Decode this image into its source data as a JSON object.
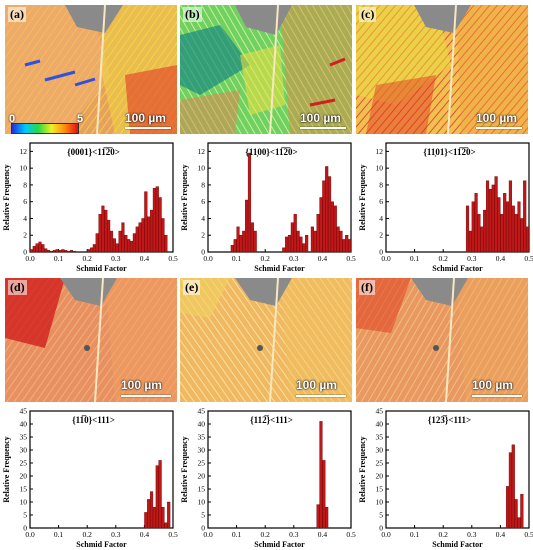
{
  "maps": [
    {
      "label": "(a)",
      "scale": "100 µm",
      "colorbar_min": "0",
      "colorbar_max": "5"
    },
    {
      "label": "(b)",
      "scale": "100 µm"
    },
    {
      "label": "(c)",
      "scale": "100 µm"
    },
    {
      "label": "(d)",
      "scale": "100 µm"
    },
    {
      "label": "(e)",
      "scale": "100 µm"
    },
    {
      "label": "(f)",
      "scale": "100 µm"
    }
  ],
  "colors": {
    "bar": "#c01818",
    "bar_edge": "#6a0000",
    "frame": "#000000"
  },
  "chart_data": [
    {
      "type": "bar",
      "title": "{0001}<11̅2̅0>",
      "xlabel": "Schmid Factor",
      "ylabel": "Relative Frequency",
      "xlim": [
        0,
        0.5
      ],
      "ylim": [
        0,
        13
      ],
      "xticks": [
        "0.0",
        "0.1",
        "0.2",
        "0.3",
        "0.4",
        "0.5"
      ],
      "yticks": [
        "0",
        "2",
        "4",
        "6",
        "8",
        "10",
        "12"
      ],
      "x": [
        0.005,
        0.015,
        0.025,
        0.035,
        0.045,
        0.055,
        0.065,
        0.075,
        0.085,
        0.095,
        0.105,
        0.115,
        0.125,
        0.135,
        0.145,
        0.155,
        0.205,
        0.215,
        0.225,
        0.235,
        0.245,
        0.255,
        0.265,
        0.275,
        0.285,
        0.295,
        0.305,
        0.315,
        0.325,
        0.335,
        0.345,
        0.355,
        0.365,
        0.375,
        0.385,
        0.395,
        0.405,
        0.415,
        0.425,
        0.435,
        0.445,
        0.455,
        0.465,
        0.475
      ],
      "values": [
        0.3,
        0.7,
        1.0,
        1.2,
        0.9,
        0.4,
        0.2,
        0.1,
        0.2,
        0.3,
        0.2,
        0.3,
        0.2,
        0.1,
        0.2,
        0.1,
        0.3,
        0.5,
        0.9,
        2.2,
        4.5,
        5.5,
        5.0,
        3.8,
        2.5,
        1.6,
        1.0,
        2.5,
        3.5,
        2.0,
        1.5,
        1.3,
        2.2,
        3.0,
        3.5,
        4.0,
        7.2,
        4.2,
        5.0,
        7.6,
        7.8,
        6.5,
        4.0,
        2.0
      ]
    },
    {
      "type": "bar",
      "title": "{11͕00}<11̅2̅0>",
      "xlabel": "Schmid Factor",
      "ylabel": "Relative Frequency",
      "xlim": [
        0,
        0.5
      ],
      "ylim": [
        0,
        13
      ],
      "xticks": [
        "0.0",
        "0.1",
        "0.2",
        "0.3",
        "0.4",
        "0.5"
      ],
      "yticks": [
        "0",
        "2",
        "4",
        "6",
        "8",
        "10",
        "12"
      ],
      "x": [
        0.085,
        0.095,
        0.105,
        0.115,
        0.125,
        0.135,
        0.145,
        0.155,
        0.165,
        0.265,
        0.275,
        0.285,
        0.295,
        0.305,
        0.315,
        0.325,
        0.335,
        0.345,
        0.365,
        0.375,
        0.385,
        0.395,
        0.405,
        0.415,
        0.425,
        0.435,
        0.445,
        0.455,
        0.465,
        0.475,
        0.485,
        0.495
      ],
      "values": [
        0.8,
        1.5,
        3.0,
        2.0,
        2.5,
        6.2,
        11.8,
        3.5,
        2.5,
        0.5,
        1.8,
        2.0,
        3.5,
        4.5,
        2.5,
        1.8,
        1.0,
        2.0,
        3.0,
        2.5,
        4.5,
        6.5,
        8.5,
        10.2,
        9.0,
        6.0,
        5.5,
        3.0,
        2.5,
        1.5,
        2.0,
        1.5
      ]
    },
    {
      "type": "bar",
      "title": "{11͕01}<11̅2̅0>",
      "xlabel": "Schmid Factor",
      "ylabel": "Relative Frequency",
      "xlim": [
        0,
        0.5
      ],
      "ylim": [
        0,
        13
      ],
      "xticks": [
        "0.0",
        "0.1",
        "0.2",
        "0.3",
        "0.4",
        "0.5"
      ],
      "yticks": [
        "0",
        "2",
        "4",
        "6",
        "8",
        "10",
        "12"
      ],
      "x": [
        0.285,
        0.295,
        0.305,
        0.315,
        0.325,
        0.335,
        0.345,
        0.355,
        0.365,
        0.375,
        0.385,
        0.395,
        0.405,
        0.415,
        0.425,
        0.435,
        0.445,
        0.455,
        0.465,
        0.475,
        0.485,
        0.495
      ],
      "values": [
        5.5,
        2.5,
        6.0,
        7.0,
        4.5,
        3.0,
        5.0,
        8.5,
        7.5,
        8.0,
        9.0,
        6.5,
        4.5,
        7.0,
        6.0,
        8.5,
        5.5,
        4.5,
        6.0,
        4.0,
        8.5,
        3.0
      ]
    },
    {
      "type": "bar",
      "title": "{11̅0}<111>",
      "xlabel": "Schmid Factor",
      "ylabel": "Relative Frequency",
      "xlim": [
        0,
        0.5
      ],
      "ylim": [
        0,
        45
      ],
      "xticks": [
        "0.0",
        "0.1",
        "0.2",
        "0.3",
        "0.4",
        "0.5"
      ],
      "yticks": [
        "0",
        "5",
        "10",
        "15",
        "20",
        "25",
        "30",
        "35",
        "40",
        "45"
      ],
      "x": [
        0.405,
        0.415,
        0.425,
        0.435,
        0.445,
        0.455,
        0.465,
        0.475,
        0.485
      ],
      "values": [
        6.0,
        11.0,
        14.0,
        8.0,
        24.0,
        26.0,
        8.0,
        2.0,
        10.0
      ]
    },
    {
      "type": "bar",
      "title": "{112̅}<111>",
      "xlabel": "Schmid Factor",
      "ylabel": "Relative Frequency",
      "xlim": [
        0,
        0.5
      ],
      "ylim": [
        0,
        45
      ],
      "xticks": [
        "0.0",
        "0.1",
        "0.2",
        "0.3",
        "0.4",
        "0.5"
      ],
      "yticks": [
        "0",
        "5",
        "10",
        "15",
        "20",
        "25",
        "30",
        "35",
        "40",
        "45"
      ],
      "x": [
        0.385,
        0.395,
        0.405,
        0.415
      ],
      "values": [
        9.0,
        41.0,
        26.0,
        8.0
      ]
    },
    {
      "type": "bar",
      "title": "{123̅}<111>",
      "xlabel": "Schmid Factor",
      "ylabel": "Relative Frequency",
      "xlim": [
        0,
        0.5
      ],
      "ylim": [
        0,
        45
      ],
      "xticks": [
        "0.0",
        "0.1",
        "0.2",
        "0.3",
        "0.4",
        "0.5"
      ],
      "yticks": [
        "0",
        "5",
        "10",
        "15",
        "20",
        "25",
        "30",
        "35",
        "40",
        "45"
      ],
      "x": [
        0.425,
        0.435,
        0.445,
        0.455,
        0.465,
        0.475
      ],
      "values": [
        16.0,
        29.0,
        32.0,
        11.0,
        4.0,
        13.0
      ]
    }
  ]
}
